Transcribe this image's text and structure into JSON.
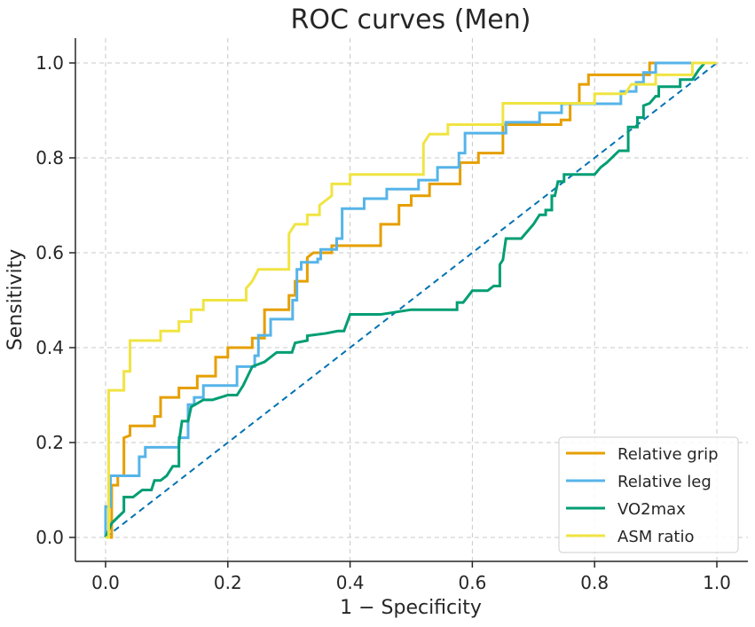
{
  "chart_data": {
    "type": "line",
    "title": "ROC curves (Men)",
    "xlabel": "1 − Specificity",
    "ylabel": "Sensitivity",
    "xlim": [
      0,
      1
    ],
    "ylim": [
      0,
      1
    ],
    "grid": true,
    "legend_position": "bottom-right",
    "xticks": [
      "0.0",
      "0.2",
      "0.4",
      "0.6",
      "0.8",
      "1.0"
    ],
    "yticks": [
      "0.0",
      "0.2",
      "0.4",
      "0.6",
      "0.8",
      "1.0"
    ],
    "xtick_values": [
      0,
      0.2,
      0.4,
      0.6,
      0.8,
      1.0
    ],
    "ytick_values": [
      0,
      0.2,
      0.4,
      0.6,
      0.8,
      1.0
    ],
    "reference_line": {
      "name": "chance",
      "color": "#0072B2",
      "points": [
        [
          0,
          0
        ],
        [
          1,
          1
        ]
      ]
    },
    "series": [
      {
        "name": "Relative grip",
        "color": "#E69F00",
        "points": [
          [
            0,
            0
          ],
          [
            0.01,
            0
          ],
          [
            0.01,
            0.11
          ],
          [
            0.02,
            0.11
          ],
          [
            0.02,
            0.13
          ],
          [
            0.03,
            0.13
          ],
          [
            0.03,
            0.21
          ],
          [
            0.04,
            0.215
          ],
          [
            0.04,
            0.235
          ],
          [
            0.08,
            0.235
          ],
          [
            0.08,
            0.255
          ],
          [
            0.09,
            0.255
          ],
          [
            0.09,
            0.295
          ],
          [
            0.12,
            0.295
          ],
          [
            0.12,
            0.315
          ],
          [
            0.15,
            0.315
          ],
          [
            0.15,
            0.34
          ],
          [
            0.18,
            0.34
          ],
          [
            0.18,
            0.38
          ],
          [
            0.2,
            0.38
          ],
          [
            0.2,
            0.4
          ],
          [
            0.24,
            0.4
          ],
          [
            0.24,
            0.42
          ],
          [
            0.26,
            0.42
          ],
          [
            0.26,
            0.48
          ],
          [
            0.3,
            0.48
          ],
          [
            0.3,
            0.51
          ],
          [
            0.31,
            0.51
          ],
          [
            0.31,
            0.54
          ],
          [
            0.33,
            0.54
          ],
          [
            0.33,
            0.59
          ],
          [
            0.34,
            0.6
          ],
          [
            0.37,
            0.6
          ],
          [
            0.37,
            0.615
          ],
          [
            0.45,
            0.615
          ],
          [
            0.45,
            0.66
          ],
          [
            0.48,
            0.66
          ],
          [
            0.48,
            0.7
          ],
          [
            0.5,
            0.7
          ],
          [
            0.5,
            0.72
          ],
          [
            0.53,
            0.72
          ],
          [
            0.53,
            0.745
          ],
          [
            0.58,
            0.745
          ],
          [
            0.58,
            0.79
          ],
          [
            0.61,
            0.79
          ],
          [
            0.61,
            0.81
          ],
          [
            0.65,
            0.81
          ],
          [
            0.65,
            0.87
          ],
          [
            0.745,
            0.87
          ],
          [
            0.745,
            0.88
          ],
          [
            0.76,
            0.88
          ],
          [
            0.76,
            0.915
          ],
          [
            0.775,
            0.915
          ],
          [
            0.775,
            0.955
          ],
          [
            0.79,
            0.955
          ],
          [
            0.79,
            0.975
          ],
          [
            0.89,
            0.975
          ],
          [
            0.89,
            1
          ],
          [
            1,
            1
          ]
        ]
      },
      {
        "name": "Relative leg",
        "color": "#56B4E9",
        "points": [
          [
            0,
            0
          ],
          [
            0,
            0.065
          ],
          [
            0.008,
            0.065
          ],
          [
            0.008,
            0.13
          ],
          [
            0.055,
            0.13
          ],
          [
            0.055,
            0.17
          ],
          [
            0.065,
            0.17
          ],
          [
            0.065,
            0.19
          ],
          [
            0.12,
            0.19
          ],
          [
            0.12,
            0.21
          ],
          [
            0.135,
            0.21
          ],
          [
            0.135,
            0.28
          ],
          [
            0.145,
            0.28
          ],
          [
            0.145,
            0.295
          ],
          [
            0.16,
            0.295
          ],
          [
            0.16,
            0.32
          ],
          [
            0.215,
            0.32
          ],
          [
            0.215,
            0.36
          ],
          [
            0.244,
            0.36
          ],
          [
            0.244,
            0.383
          ],
          [
            0.25,
            0.383
          ],
          [
            0.25,
            0.426
          ],
          [
            0.27,
            0.426
          ],
          [
            0.27,
            0.46
          ],
          [
            0.306,
            0.46
          ],
          [
            0.306,
            0.5
          ],
          [
            0.313,
            0.5
          ],
          [
            0.313,
            0.565
          ],
          [
            0.32,
            0.565
          ],
          [
            0.32,
            0.58
          ],
          [
            0.347,
            0.58
          ],
          [
            0.347,
            0.587
          ],
          [
            0.352,
            0.587
          ],
          [
            0.352,
            0.607
          ],
          [
            0.378,
            0.607
          ],
          [
            0.378,
            0.63
          ],
          [
            0.387,
            0.63
          ],
          [
            0.387,
            0.693
          ],
          [
            0.423,
            0.693
          ],
          [
            0.423,
            0.714
          ],
          [
            0.46,
            0.714
          ],
          [
            0.46,
            0.734
          ],
          [
            0.512,
            0.734
          ],
          [
            0.512,
            0.753
          ],
          [
            0.543,
            0.753
          ],
          [
            0.543,
            0.78
          ],
          [
            0.578,
            0.78
          ],
          [
            0.578,
            0.81
          ],
          [
            0.588,
            0.81
          ],
          [
            0.588,
            0.852
          ],
          [
            0.655,
            0.852
          ],
          [
            0.655,
            0.875
          ],
          [
            0.71,
            0.875
          ],
          [
            0.71,
            0.895
          ],
          [
            0.746,
            0.895
          ],
          [
            0.746,
            0.914
          ],
          [
            0.843,
            0.914
          ],
          [
            0.843,
            0.94
          ],
          [
            0.868,
            0.94
          ],
          [
            0.868,
            0.959
          ],
          [
            0.88,
            0.959
          ],
          [
            0.88,
            0.98
          ],
          [
            0.9,
            0.98
          ],
          [
            0.9,
            1
          ],
          [
            1,
            1
          ]
        ]
      },
      {
        "name": "VO2max",
        "color": "#009E73",
        "points": [
          [
            0,
            0
          ],
          [
            0.01,
            0.03
          ],
          [
            0.03,
            0.055
          ],
          [
            0.03,
            0.085
          ],
          [
            0.045,
            0.085
          ],
          [
            0.06,
            0.1
          ],
          [
            0.075,
            0.1
          ],
          [
            0.08,
            0.12
          ],
          [
            0.09,
            0.12
          ],
          [
            0.1,
            0.13
          ],
          [
            0.11,
            0.15
          ],
          [
            0.12,
            0.15
          ],
          [
            0.12,
            0.2
          ],
          [
            0.125,
            0.245
          ],
          [
            0.135,
            0.245
          ],
          [
            0.14,
            0.275
          ],
          [
            0.16,
            0.29
          ],
          [
            0.175,
            0.29
          ],
          [
            0.2,
            0.3
          ],
          [
            0.215,
            0.3
          ],
          [
            0.225,
            0.32
          ],
          [
            0.24,
            0.36
          ],
          [
            0.26,
            0.37
          ],
          [
            0.28,
            0.39
          ],
          [
            0.305,
            0.39
          ],
          [
            0.31,
            0.41
          ],
          [
            0.33,
            0.415
          ],
          [
            0.33,
            0.425
          ],
          [
            0.36,
            0.43
          ],
          [
            0.38,
            0.435
          ],
          [
            0.39,
            0.435
          ],
          [
            0.4,
            0.47
          ],
          [
            0.45,
            0.47
          ],
          [
            0.5,
            0.48
          ],
          [
            0.575,
            0.48
          ],
          [
            0.575,
            0.495
          ],
          [
            0.585,
            0.495
          ],
          [
            0.6,
            0.52
          ],
          [
            0.625,
            0.52
          ],
          [
            0.635,
            0.53
          ],
          [
            0.645,
            0.53
          ],
          [
            0.645,
            0.575
          ],
          [
            0.65,
            0.585
          ],
          [
            0.655,
            0.63
          ],
          [
            0.68,
            0.63
          ],
          [
            0.7,
            0.66
          ],
          [
            0.71,
            0.68
          ],
          [
            0.72,
            0.68
          ],
          [
            0.72,
            0.69
          ],
          [
            0.73,
            0.69
          ],
          [
            0.73,
            0.72
          ],
          [
            0.735,
            0.72
          ],
          [
            0.74,
            0.75
          ],
          [
            0.75,
            0.75
          ],
          [
            0.75,
            0.765
          ],
          [
            0.8,
            0.765
          ],
          [
            0.81,
            0.78
          ],
          [
            0.82,
            0.79
          ],
          [
            0.84,
            0.815
          ],
          [
            0.855,
            0.815
          ],
          [
            0.855,
            0.865
          ],
          [
            0.87,
            0.865
          ],
          [
            0.87,
            0.885
          ],
          [
            0.88,
            0.885
          ],
          [
            0.88,
            0.91
          ],
          [
            0.89,
            0.915
          ],
          [
            0.9,
            0.93
          ],
          [
            0.905,
            0.93
          ],
          [
            0.905,
            0.95
          ],
          [
            0.94,
            0.95
          ],
          [
            0.94,
            0.965
          ],
          [
            0.96,
            0.965
          ],
          [
            0.97,
            0.985
          ],
          [
            0.98,
            1
          ],
          [
            1,
            1
          ]
        ]
      },
      {
        "name": "ASM ratio",
        "color": "#F0E442",
        "points": [
          [
            0,
            0
          ],
          [
            0.005,
            0
          ],
          [
            0.005,
            0.31
          ],
          [
            0.03,
            0.31
          ],
          [
            0.03,
            0.35
          ],
          [
            0.04,
            0.35
          ],
          [
            0.04,
            0.415
          ],
          [
            0.09,
            0.415
          ],
          [
            0.09,
            0.435
          ],
          [
            0.12,
            0.435
          ],
          [
            0.12,
            0.455
          ],
          [
            0.14,
            0.455
          ],
          [
            0.14,
            0.48
          ],
          [
            0.16,
            0.48
          ],
          [
            0.16,
            0.5
          ],
          [
            0.23,
            0.5
          ],
          [
            0.23,
            0.525
          ],
          [
            0.24,
            0.54
          ],
          [
            0.25,
            0.565
          ],
          [
            0.3,
            0.565
          ],
          [
            0.3,
            0.64
          ],
          [
            0.31,
            0.66
          ],
          [
            0.33,
            0.66
          ],
          [
            0.33,
            0.68
          ],
          [
            0.35,
            0.68
          ],
          [
            0.35,
            0.7
          ],
          [
            0.37,
            0.72
          ],
          [
            0.37,
            0.745
          ],
          [
            0.4,
            0.745
          ],
          [
            0.4,
            0.765
          ],
          [
            0.52,
            0.765
          ],
          [
            0.52,
            0.83
          ],
          [
            0.53,
            0.85
          ],
          [
            0.56,
            0.85
          ],
          [
            0.56,
            0.87
          ],
          [
            0.65,
            0.87
          ],
          [
            0.65,
            0.915
          ],
          [
            0.8,
            0.915
          ],
          [
            0.8,
            0.935
          ],
          [
            0.85,
            0.935
          ],
          [
            0.86,
            0.955
          ],
          [
            0.9,
            0.955
          ],
          [
            0.9,
            0.975
          ],
          [
            0.96,
            0.975
          ],
          [
            0.96,
            1
          ],
          [
            1,
            1
          ]
        ]
      }
    ]
  }
}
